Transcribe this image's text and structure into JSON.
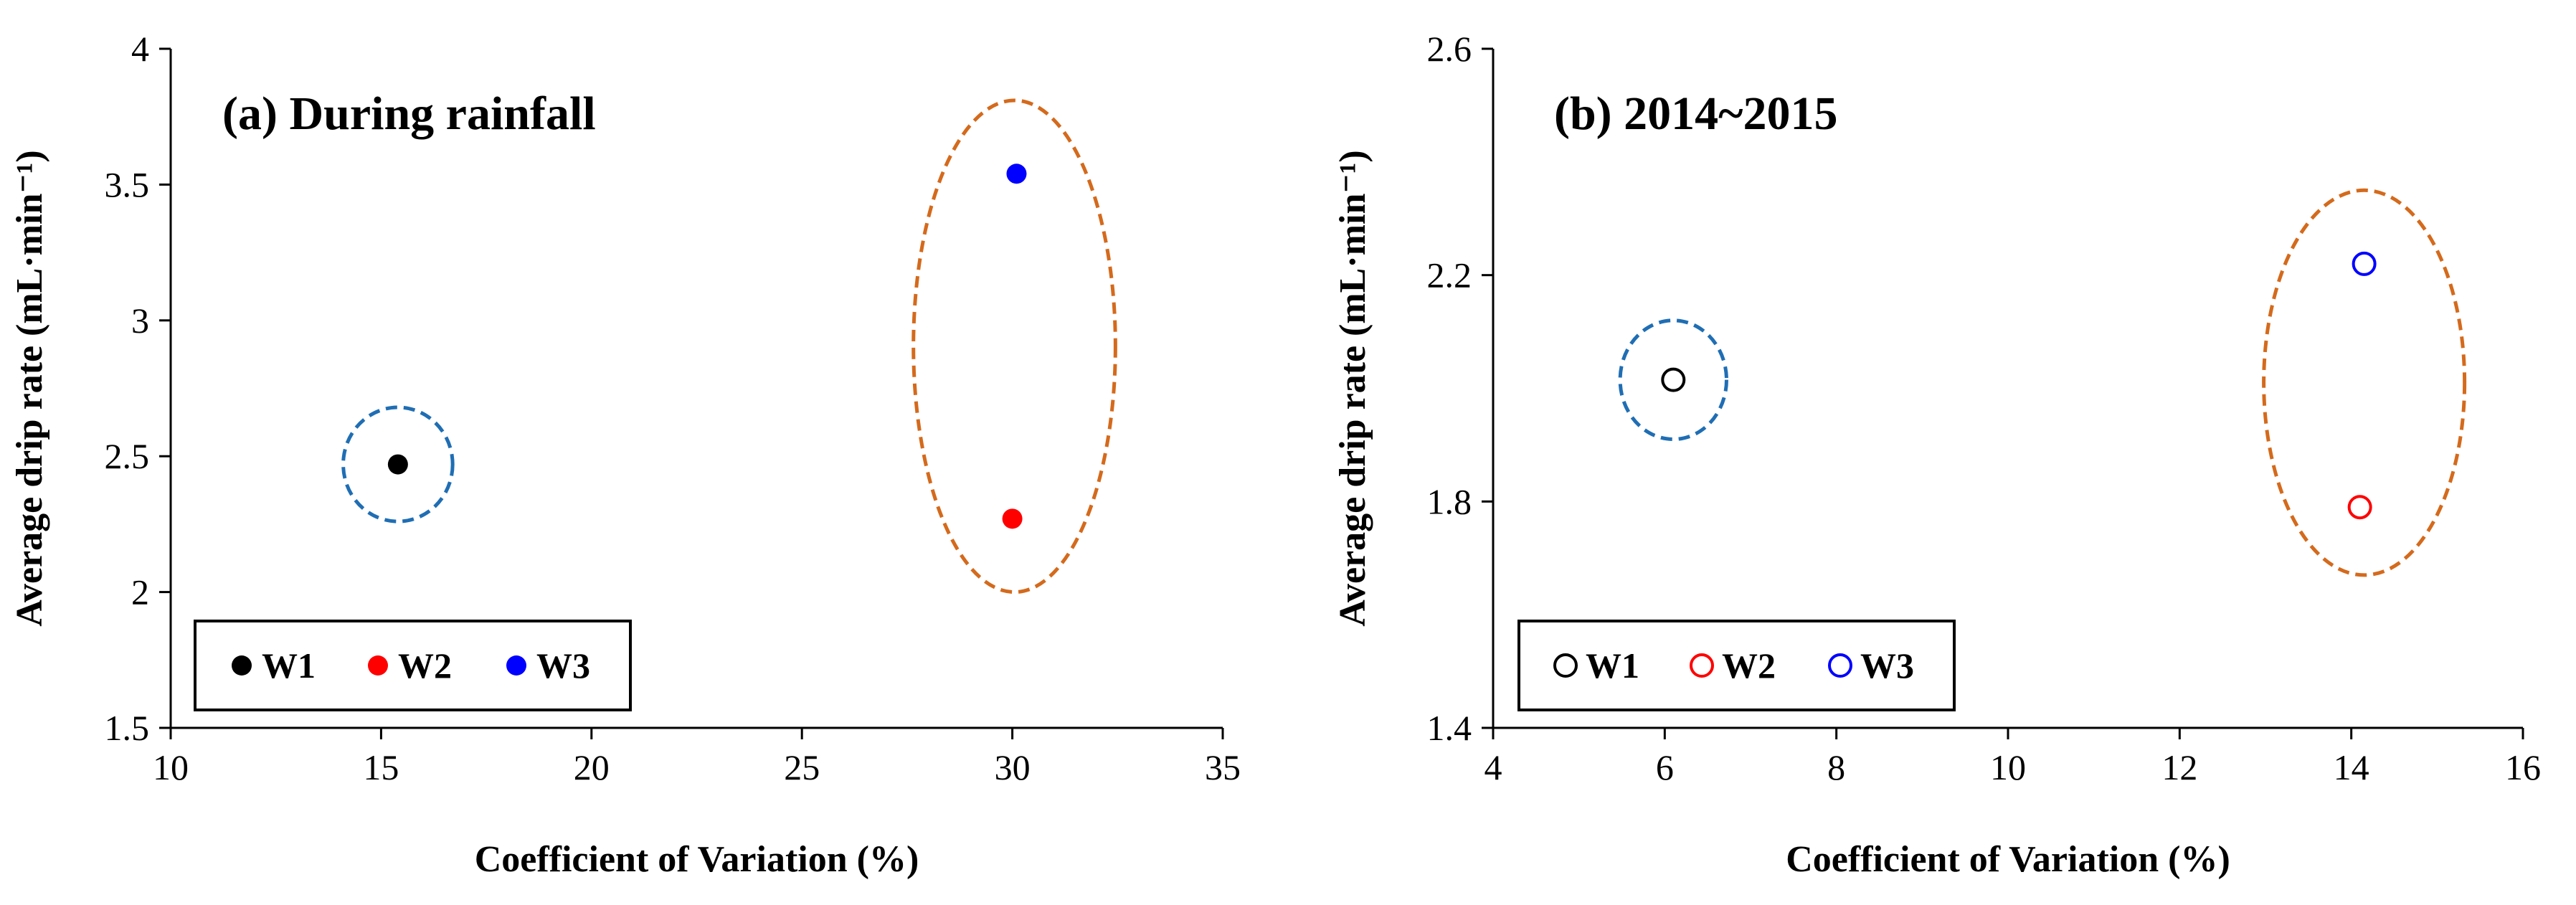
{
  "chart_data": [
    {
      "type": "scatter",
      "title": "(a) During rainfall",
      "xlabel": "Coefficient of Variation (%)",
      "ylabel": "Average drip rate (mL·min⁻¹)",
      "xlim": [
        10,
        35
      ],
      "ylim": [
        1.5,
        4
      ],
      "xticks": [
        10,
        15,
        20,
        25,
        30,
        35
      ],
      "yticks": [
        1.5,
        2,
        2.5,
        3,
        3.5,
        4
      ],
      "xtick_labels": [
        "10",
        "15",
        "20",
        "25",
        "30",
        "35"
      ],
      "ytick_labels": [
        "1.5",
        "2",
        "2.5",
        "3",
        "3.5",
        "4"
      ],
      "marker": "filled",
      "legend_position": "bottom-left",
      "series": [
        {
          "name": "W1",
          "color": "#000000",
          "x": [
            15.4
          ],
          "y": [
            2.47
          ]
        },
        {
          "name": "W2",
          "color": "#ff0000",
          "x": [
            30.0
          ],
          "y": [
            2.27
          ]
        },
        {
          "name": "W3",
          "color": "#0000ff",
          "x": [
            30.1
          ],
          "y": [
            3.54
          ]
        }
      ],
      "annotations": [
        {
          "shape": "dashed-ellipse",
          "color": "#1f6eb4",
          "cx": 15.4,
          "cy": 2.47,
          "rx": 1.3,
          "ry": 0.21
        },
        {
          "shape": "dashed-ellipse",
          "color": "#d46a1c",
          "cx": 30.05,
          "cy": 2.905,
          "rx": 2.4,
          "ry": 0.905
        }
      ]
    },
    {
      "type": "scatter",
      "title": "(b) 2014~2015",
      "xlabel": "Coefficient of Variation (%)",
      "ylabel": "Average drip rate (mL·min⁻¹)",
      "xlim": [
        4,
        16
      ],
      "ylim": [
        1.4,
        2.6
      ],
      "xticks": [
        4,
        6,
        8,
        10,
        12,
        14,
        16
      ],
      "yticks": [
        1.4,
        1.8,
        2.2,
        2.6
      ],
      "xtick_labels": [
        "4",
        "6",
        "8",
        "10",
        "12",
        "14",
        "16"
      ],
      "ytick_labels": [
        "1.4",
        "1.8",
        "2.2",
        "2.6"
      ],
      "marker": "open",
      "legend_position": "bottom-left",
      "series": [
        {
          "name": "W1",
          "color": "#000000",
          "x": [
            6.1
          ],
          "y": [
            2.015
          ]
        },
        {
          "name": "W2",
          "color": "#ff0000",
          "x": [
            14.1
          ],
          "y": [
            1.79
          ]
        },
        {
          "name": "W3",
          "color": "#0000ff",
          "x": [
            14.15
          ],
          "y": [
            2.22
          ]
        }
      ],
      "annotations": [
        {
          "shape": "dashed-ellipse",
          "color": "#1f6eb4",
          "cx": 6.1,
          "cy": 2.015,
          "rx": 0.62,
          "ry": 0.105
        },
        {
          "shape": "dashed-ellipse",
          "color": "#d46a1c",
          "cx": 14.15,
          "cy": 2.01,
          "rx": 1.17,
          "ry": 0.34
        }
      ]
    }
  ]
}
